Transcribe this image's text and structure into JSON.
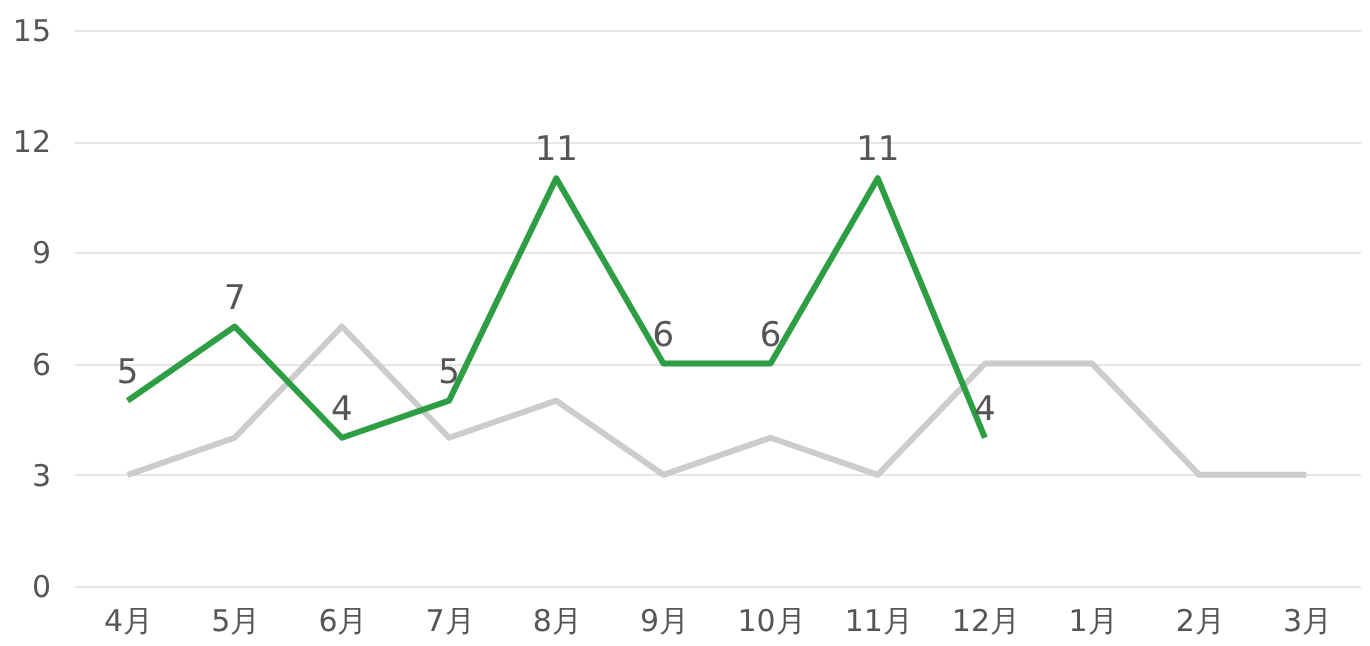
{
  "chart_data": {
    "type": "line",
    "categories": [
      "4月",
      "5月",
      "6月",
      "7月",
      "8月",
      "9月",
      "10月",
      "11月",
      "12月",
      "1月",
      "2月",
      "3月"
    ],
    "series": [
      {
        "color": "#cccccc",
        "values": [
          3,
          4,
          7,
          4,
          5,
          3,
          4,
          3,
          6,
          6,
          3,
          3
        ]
      },
      {
        "color": "#2e9e44",
        "values": [
          5,
          7,
          4,
          5,
          11,
          6,
          6,
          11,
          4,
          null,
          null,
          null
        ],
        "value_labels": [
          "5",
          "7",
          "4",
          "5",
          "11",
          "6",
          "6",
          "11",
          "4",
          null,
          null,
          null
        ]
      }
    ],
    "ylim": [
      0,
      15
    ],
    "yticks": [
      0,
      3,
      6,
      9,
      12,
      15
    ],
    "grid": "y",
    "legend": false,
    "marker": "none",
    "line_style": "solid"
  }
}
